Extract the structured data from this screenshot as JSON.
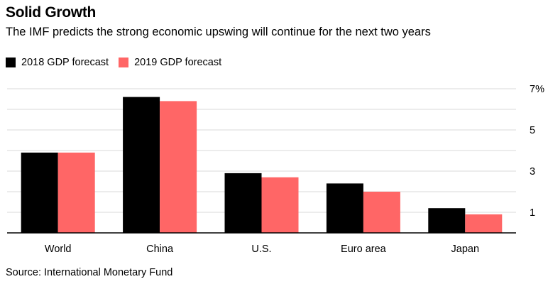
{
  "header": {
    "title": "Solid Growth",
    "subtitle": "The IMF predicts the strong economic upswing will continue for the next two years"
  },
  "legend": {
    "items": [
      {
        "label": "2018 GDP forecast",
        "color": "#000000"
      },
      {
        "label": "2019 GDP forecast",
        "color": "#ff6666"
      }
    ]
  },
  "footer": {
    "source": "Source: International Monetary Fund"
  },
  "chart_data": {
    "type": "bar",
    "title": "Solid Growth",
    "subtitle": "The IMF predicts the strong economic upswing will continue for the next two years",
    "categories": [
      "World",
      "China",
      "U.S.",
      "Euro area",
      "Japan"
    ],
    "series": [
      {
        "name": "2018 GDP forecast",
        "color": "#000000",
        "values": [
          3.9,
          6.6,
          2.9,
          2.4,
          1.2
        ]
      },
      {
        "name": "2019 GDP forecast",
        "color": "#ff6666",
        "values": [
          3.9,
          6.4,
          2.7,
          2.0,
          0.9
        ]
      }
    ],
    "ylim": [
      0,
      7
    ],
    "yticks": [
      1,
      3,
      5,
      7
    ],
    "ytick_labels": [
      "1",
      "3",
      "5",
      "7%"
    ],
    "grid_values": [
      1,
      2,
      3,
      4,
      5,
      6,
      7
    ],
    "y_axis_position": "right",
    "grid": true,
    "xlabel": "",
    "ylabel": "",
    "legend_position": "top-left"
  }
}
